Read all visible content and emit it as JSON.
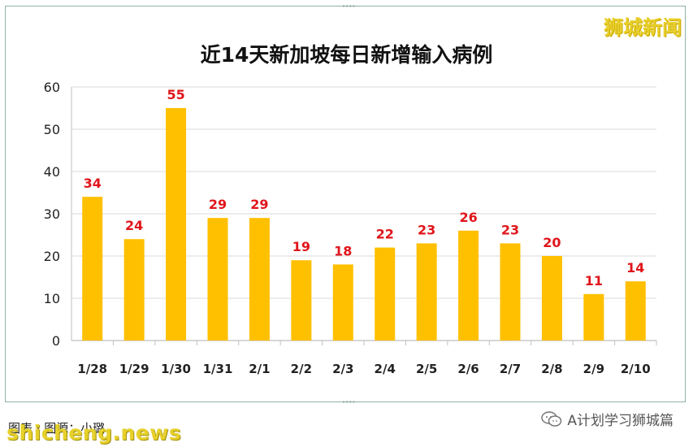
{
  "watermark": "狮城新闻",
  "footer": {
    "caption": "图表 · 图源：小璐",
    "brand": "shicheng.news",
    "wechat_text": "A计划学习狮城篇"
  },
  "colors": {
    "bar": "#ffc000",
    "value_label": "#e0151b",
    "grid": "#d9d9d9",
    "axis_text": "#222222"
  },
  "chart_data": {
    "type": "bar",
    "title": "近14天新加坡每日新增输入病例",
    "xlabel": "",
    "ylabel": "",
    "categories": [
      "1/28",
      "1/29",
      "1/30",
      "1/31",
      "2/1",
      "2/2",
      "2/3",
      "2/4",
      "2/5",
      "2/6",
      "2/7",
      "2/8",
      "2/9",
      "2/10"
    ],
    "values": [
      34,
      24,
      55,
      29,
      29,
      19,
      18,
      22,
      23,
      26,
      23,
      20,
      11,
      14
    ],
    "ylim": [
      0,
      60
    ],
    "yticks": [
      0,
      10,
      20,
      30,
      40,
      50,
      60
    ],
    "grid": true,
    "data_labels": true
  }
}
